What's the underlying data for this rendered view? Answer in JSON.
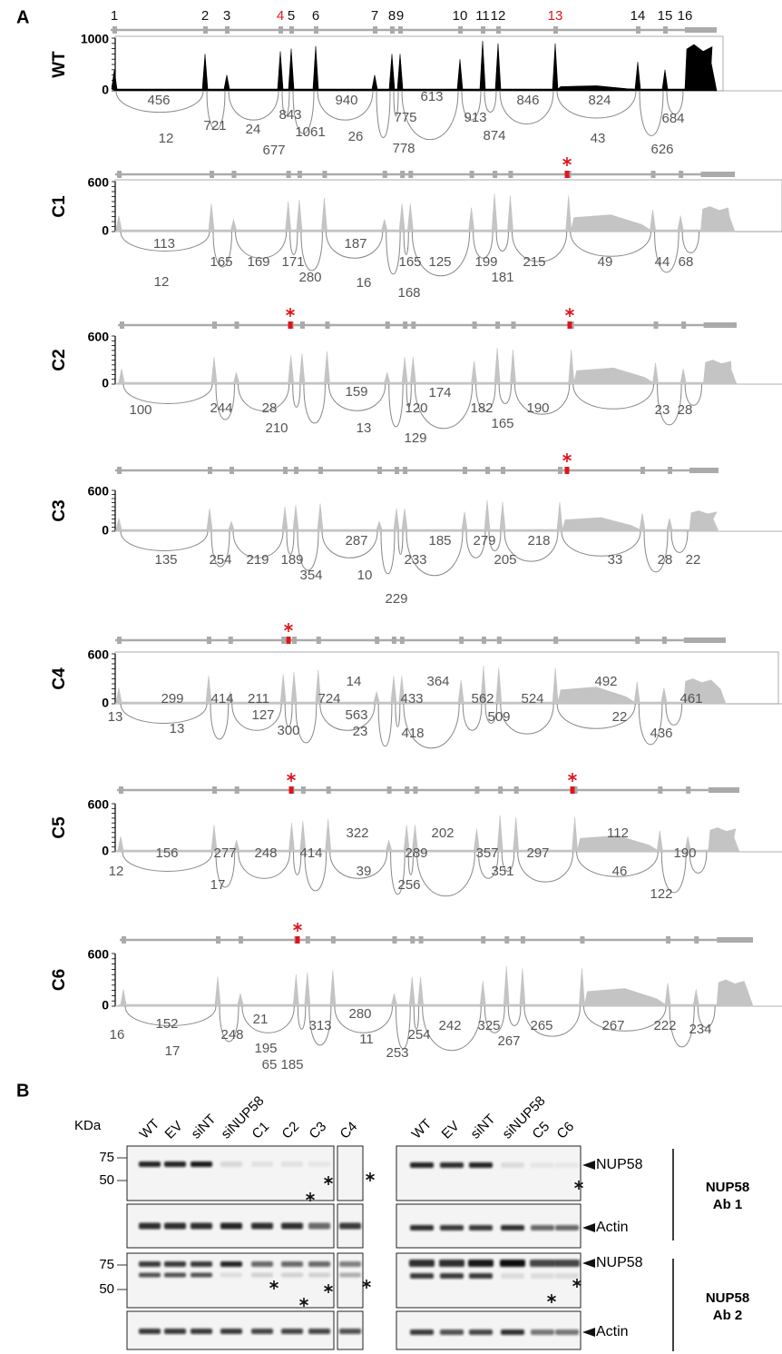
{
  "panel_a": {
    "label": "A",
    "exons": [
      1,
      2,
      3,
      4,
      5,
      6,
      7,
      8,
      9,
      10,
      11,
      12,
      13,
      14,
      15,
      16
    ],
    "exon_colors": [
      "#111111",
      "#111111",
      "#111111",
      "#e0141c",
      "#111111",
      "#111111",
      "#111111",
      "#111111",
      "#111111",
      "#111111",
      "#111111",
      "#111111",
      "#e0141c",
      "#111111",
      "#111111",
      "#111111"
    ],
    "tracks": [
      {
        "name": "WT",
        "ticks": [
          1000,
          0
        ],
        "junctions": [
          456,
          721,
          24,
          843,
          12,
          677,
          1061,
          940,
          26,
          775,
          778,
          613,
          913,
          874,
          846,
          824,
          43,
          684,
          626
        ]
      },
      {
        "name": "C1",
        "ticks": [
          600,
          0
        ],
        "junctions": [
          113,
          12,
          165,
          169,
          171,
          280,
          187,
          16,
          165,
          168,
          125,
          199,
          181,
          215,
          49,
          44,
          68
        ]
      },
      {
        "name": "C2",
        "ticks": [
          600,
          0
        ],
        "junctions": [
          100,
          244,
          28,
          210,
          159,
          13,
          120,
          129,
          174,
          182,
          165,
          190,
          23,
          28
        ]
      },
      {
        "name": "C3",
        "ticks": [
          600,
          0
        ],
        "junctions": [
          135,
          254,
          219,
          189,
          354,
          287,
          10,
          233,
          229,
          185,
          279,
          205,
          218,
          33,
          28,
          22
        ]
      },
      {
        "name": "C4",
        "ticks": [
          600,
          0
        ],
        "junctions": [
          13,
          299,
          13,
          414,
          211,
          127,
          300,
          724,
          14,
          563,
          23,
          433,
          418,
          364,
          562,
          509,
          524,
          492,
          22,
          461,
          436
        ]
      },
      {
        "name": "C5",
        "ticks": [
          600,
          0
        ],
        "junctions": [
          12,
          156,
          17,
          277,
          248,
          414,
          322,
          39,
          289,
          256,
          202,
          357,
          351,
          297,
          112,
          46,
          122,
          190
        ]
      },
      {
        "name": "C6",
        "ticks": [
          600,
          0
        ],
        "junctions": [
          16,
          152,
          17,
          248,
          21,
          195,
          65,
          185,
          313,
          280,
          11,
          253,
          254,
          242,
          325,
          267,
          265,
          267,
          222,
          234
        ]
      }
    ]
  },
  "panel_b": {
    "label": "B",
    "unit": "KDa",
    "lanes_left": [
      "WT",
      "EV",
      "siNT",
      "siNUP58",
      "C1",
      "C2",
      "C3",
      "C4"
    ],
    "lanes_right": [
      "WT",
      "EV",
      "siNT",
      "siNUP58",
      "C5",
      "C6"
    ],
    "markers": [
      [
        75,
        50
      ],
      [
        75,
        50
      ]
    ],
    "bands": [
      "NUP58",
      "Actin",
      "NUP58",
      "Actin"
    ],
    "antibodies": [
      [
        "NUP58",
        "Ab 1"
      ],
      [
        "NUP58",
        "Ab 2"
      ]
    ]
  }
}
